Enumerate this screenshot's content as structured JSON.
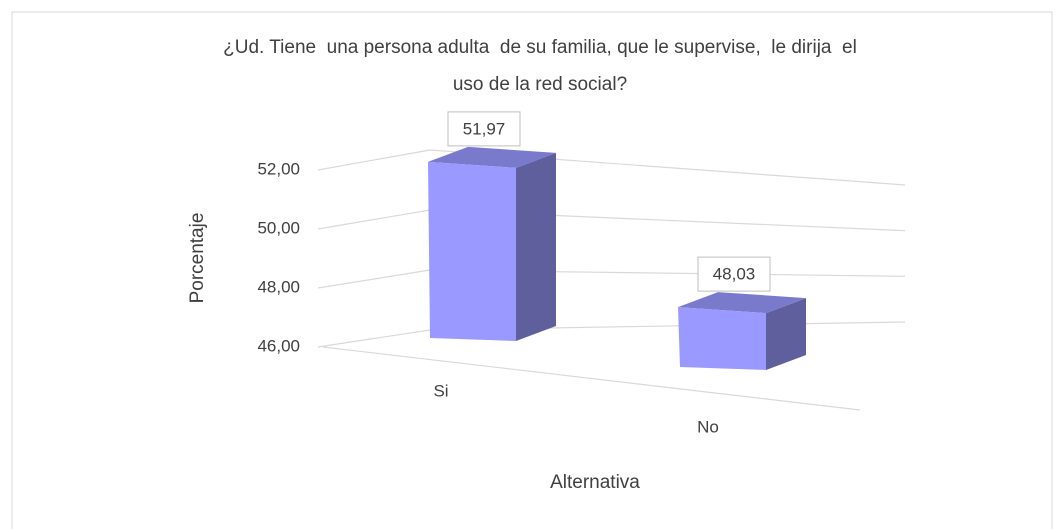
{
  "chart_data": {
    "type": "bar3d",
    "title": [
      "¿Ud. Tiene  una persona adulta  de su familia, que le supervise,  le dirija  el",
      "uso de la red social?"
    ],
    "categories": [
      "Si",
      "No"
    ],
    "values": [
      51.97,
      48.03
    ],
    "value_labels": [
      "51,97",
      "48,03"
    ],
    "color": "#9999ff",
    "ylabel": "Porcentaje",
    "xlabel": "Alternativa",
    "ylim": [
      46,
      52
    ],
    "yticks": [
      {
        "value": 46,
        "label": "46,00"
      },
      {
        "value": 48,
        "label": "48,00"
      },
      {
        "value": 50,
        "label": "50,00"
      },
      {
        "value": 52,
        "label": "52,00"
      }
    ],
    "grid": true
  }
}
